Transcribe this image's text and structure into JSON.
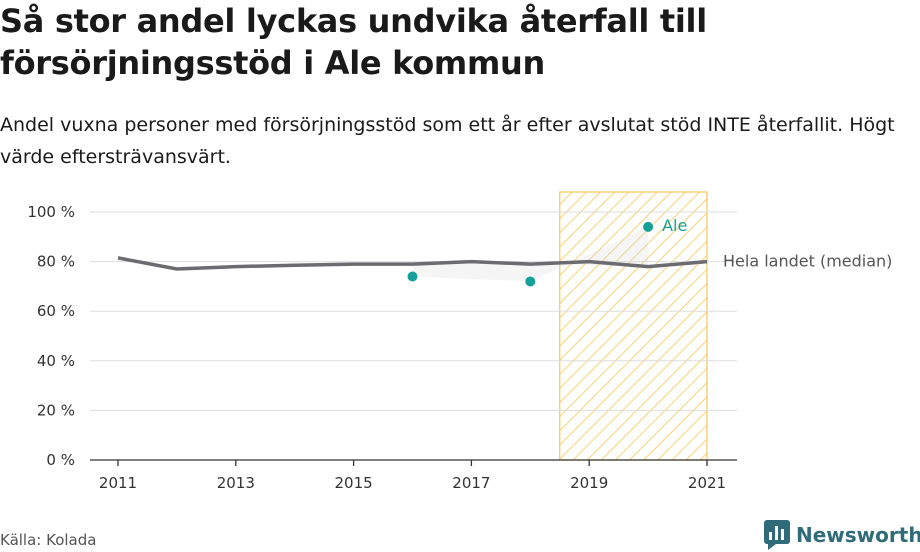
{
  "header": {
    "title": "Så stor andel lyckas undvika återfall till försörjningsstöd i Ale kommun",
    "subtitle": "Andel vuxna personer med försörjningsstöd som ett år efter avslutat stöd INTE återfallit. Högt värde eftersträvansvärt."
  },
  "footer": {
    "source": "Källa: Kolada",
    "brand": "Newsworthy"
  },
  "colors": {
    "median_line": "#6b6b70",
    "ale_points": "#15a199",
    "highlight_stroke": "#f6c655",
    "grid": "#dddddd",
    "brand": "#2f6b78"
  },
  "chart_data": {
    "type": "line",
    "ylim": [
      0,
      100
    ],
    "xlim": [
      2011,
      2021
    ],
    "y_ticks": [
      "0 %",
      "20 %",
      "40 %",
      "60 %",
      "80 %",
      "100 %"
    ],
    "y_tick_values": [
      0,
      20,
      40,
      60,
      80,
      100
    ],
    "x_ticks": [
      "2011",
      "2013",
      "2015",
      "2017",
      "2019",
      "2021"
    ],
    "x_tick_values": [
      2011,
      2013,
      2015,
      2017,
      2019,
      2021
    ],
    "highlight_range": [
      2018.5,
      2021
    ],
    "series": [
      {
        "name": "Hela landet (median)",
        "style": "line",
        "points": [
          [
            2011,
            81.5
          ],
          [
            2012,
            77
          ],
          [
            2013,
            78
          ],
          [
            2014,
            78.5
          ],
          [
            2015,
            79
          ],
          [
            2016,
            79
          ],
          [
            2017,
            80
          ],
          [
            2018,
            79
          ],
          [
            2019,
            80
          ],
          [
            2020,
            78
          ],
          [
            2021,
            80
          ]
        ]
      },
      {
        "name": "Ale",
        "style": "dots",
        "points": [
          [
            2016,
            74
          ],
          [
            2018,
            72
          ],
          [
            2020,
            94
          ]
        ]
      }
    ]
  }
}
